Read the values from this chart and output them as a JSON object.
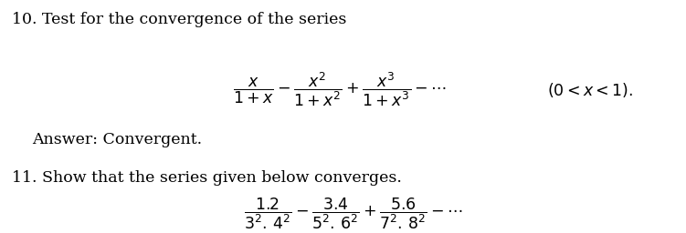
{
  "bg_color": "#ffffff",
  "text_color": "#000000",
  "fig_width": 7.51,
  "fig_height": 2.56,
  "dpi": 100,
  "problem10_header": "10. Test for the convergence of the series",
  "problem10_answer": "Answer: Convergent.",
  "problem11_header": "11. Show that the series given below converges.",
  "formula10": "$\\dfrac{x}{1+x} - \\dfrac{x^2}{1+x^2} + \\dfrac{x^3}{1+x^3} - \\cdots$",
  "condition10": "$(0 < x < 1).$",
  "formula11": "$\\dfrac{1.2}{3^2.4^2} - \\dfrac{3.4}{5^2.6^2} + \\dfrac{5.6}{7^2.8^2} - \\cdots$",
  "fs_header": 12.5,
  "fs_formula": 12.5,
  "fs_answer": 12.5
}
